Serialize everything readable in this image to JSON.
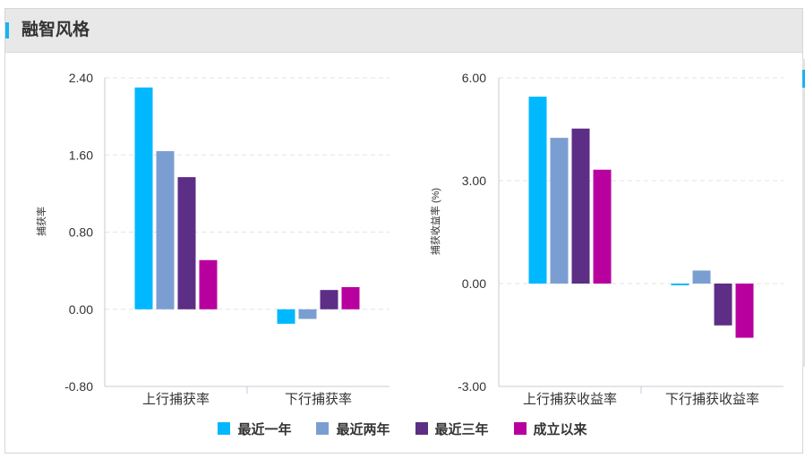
{
  "header": {
    "title": "融智风格"
  },
  "legend": [
    {
      "label": "最近一年",
      "color": "#00b8ff"
    },
    {
      "label": "最近两年",
      "color": "#7b9ed2"
    },
    {
      "label": "最近三年",
      "color": "#5c2e85"
    },
    {
      "label": "成立以来",
      "color": "#b8009e"
    }
  ],
  "chart_data": [
    {
      "type": "bar",
      "title": "",
      "ylabel": "捕获率",
      "categories": [
        "上行捕获率",
        "下行捕获率"
      ],
      "ylim": [
        -0.8,
        2.4
      ],
      "yticks": [
        "2.40",
        "1.60",
        "0.80",
        "0.00",
        "-0.80"
      ],
      "grid": true,
      "series": [
        {
          "name": "最近一年",
          "values": [
            2.3,
            -0.15
          ]
        },
        {
          "name": "最近两年",
          "values": [
            1.64,
            -0.1
          ]
        },
        {
          "name": "最近三年",
          "values": [
            1.37,
            0.2
          ]
        },
        {
          "name": "成立以来",
          "values": [
            0.51,
            0.23
          ]
        }
      ]
    },
    {
      "type": "bar",
      "title": "",
      "ylabel": "捕获收益率 (%)",
      "categories": [
        "上行捕获收益率",
        "下行捕获收益率"
      ],
      "ylim": [
        -3.0,
        6.0
      ],
      "yticks": [
        "6.00",
        "3.00",
        "0.00",
        "-3.00"
      ],
      "grid": true,
      "series": [
        {
          "name": "最近一年",
          "values": [
            5.45,
            -0.05
          ]
        },
        {
          "name": "最近两年",
          "values": [
            4.25,
            0.38
          ]
        },
        {
          "name": "最近三年",
          "values": [
            4.52,
            -1.22
          ]
        },
        {
          "name": "成立以来",
          "values": [
            3.32,
            -1.58
          ]
        }
      ]
    }
  ]
}
